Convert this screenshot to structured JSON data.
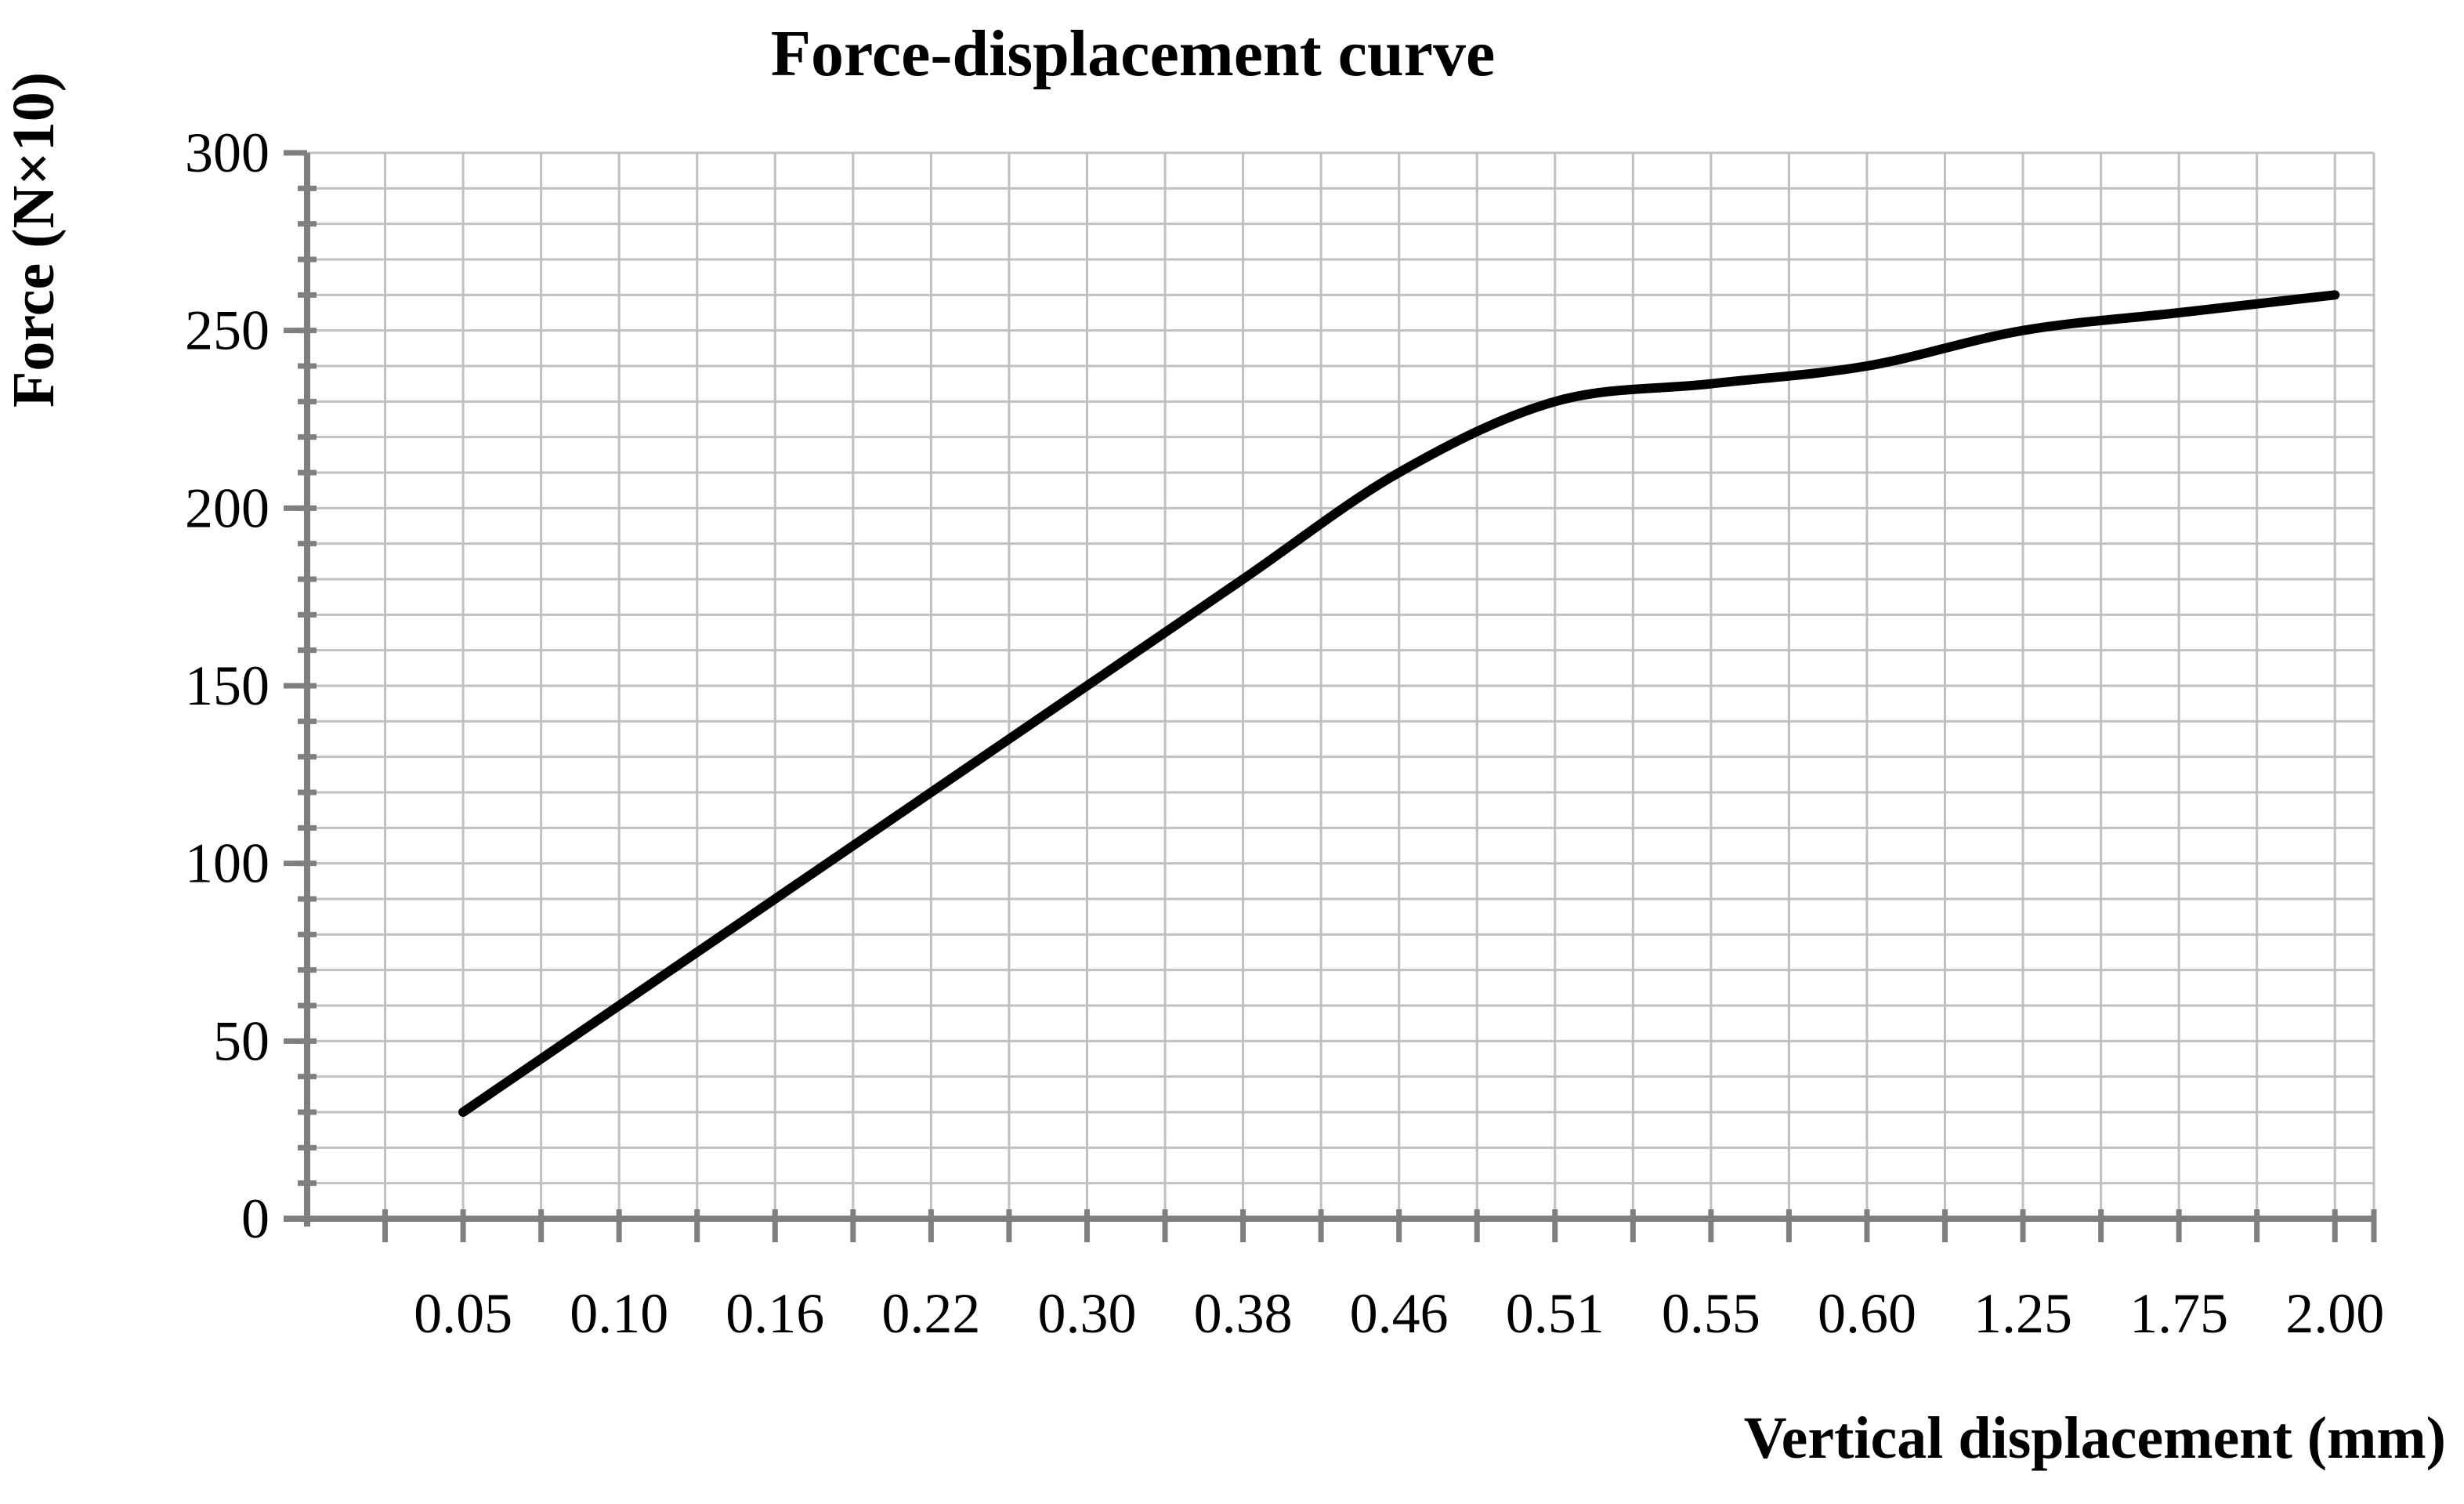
{
  "chart_data": {
    "type": "line",
    "title": "Force-displacement curve",
    "xlabel": "Vertical displacement (mm)",
    "ylabel": "Force (N×10)",
    "categories": [
      "0.05",
      "0.10",
      "0.16",
      "0.22",
      "0.30",
      "0.38",
      "0.46",
      "0.51",
      "0.55",
      "0.60",
      "1.25",
      "1.75",
      "2.00"
    ],
    "series": [
      {
        "values": [
          30,
          60,
          90,
          120,
          150,
          180,
          210,
          230,
          235,
          240,
          250,
          255,
          260
        ]
      }
    ],
    "ylim": [
      0,
      300
    ],
    "yticks": [
      "0",
      "50",
      "100",
      "150",
      "200",
      "250",
      "300"
    ],
    "grid": true,
    "smooth": true,
    "line_color": "#000000",
    "grid_color": "#c0c0c0",
    "axis_color": "#7f7f7f"
  }
}
